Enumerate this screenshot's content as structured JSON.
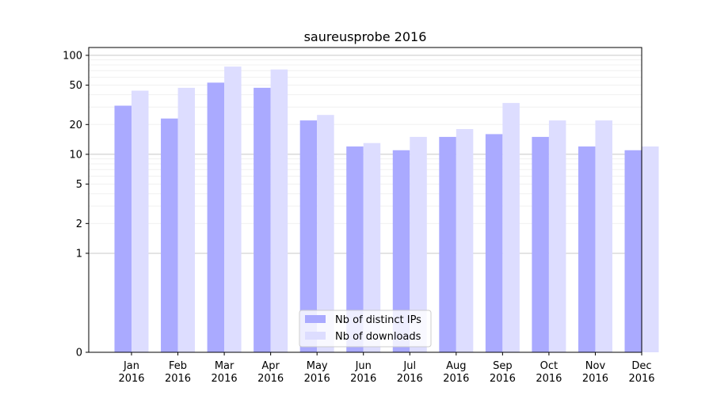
{
  "chart_data": {
    "type": "bar",
    "title": "saureusprobe 2016",
    "xlabel": "",
    "ylabel": "",
    "y_scale": "symlog",
    "ylim": [
      0,
      120
    ],
    "yticks": [
      0,
      1,
      2,
      5,
      10,
      20,
      50,
      100
    ],
    "ytick_labels": [
      "0",
      "1",
      "2",
      "5",
      "10",
      "20",
      "50",
      "100"
    ],
    "categories": [
      [
        "Jan",
        "2016"
      ],
      [
        "Feb",
        "2016"
      ],
      [
        "Mar",
        "2016"
      ],
      [
        "Apr",
        "2016"
      ],
      [
        "May",
        "2016"
      ],
      [
        "Jun",
        "2016"
      ],
      [
        "Jul",
        "2016"
      ],
      [
        "Aug",
        "2016"
      ],
      [
        "Sep",
        "2016"
      ],
      [
        "Oct",
        "2016"
      ],
      [
        "Nov",
        "2016"
      ],
      [
        "Dec",
        "2016"
      ]
    ],
    "series": [
      {
        "name": "Nb of distinct IPs",
        "color": "#aaaaff",
        "values": [
          31,
          23,
          53,
          47,
          22,
          12,
          11,
          15,
          16,
          15,
          12,
          11
        ]
      },
      {
        "name": "Nb of downloads",
        "color": "#ddddff",
        "values": [
          44,
          47,
          77,
          72,
          25,
          13,
          15,
          18,
          33,
          22,
          22,
          12
        ]
      }
    ],
    "legend_position": "lower center",
    "grid": true
  }
}
